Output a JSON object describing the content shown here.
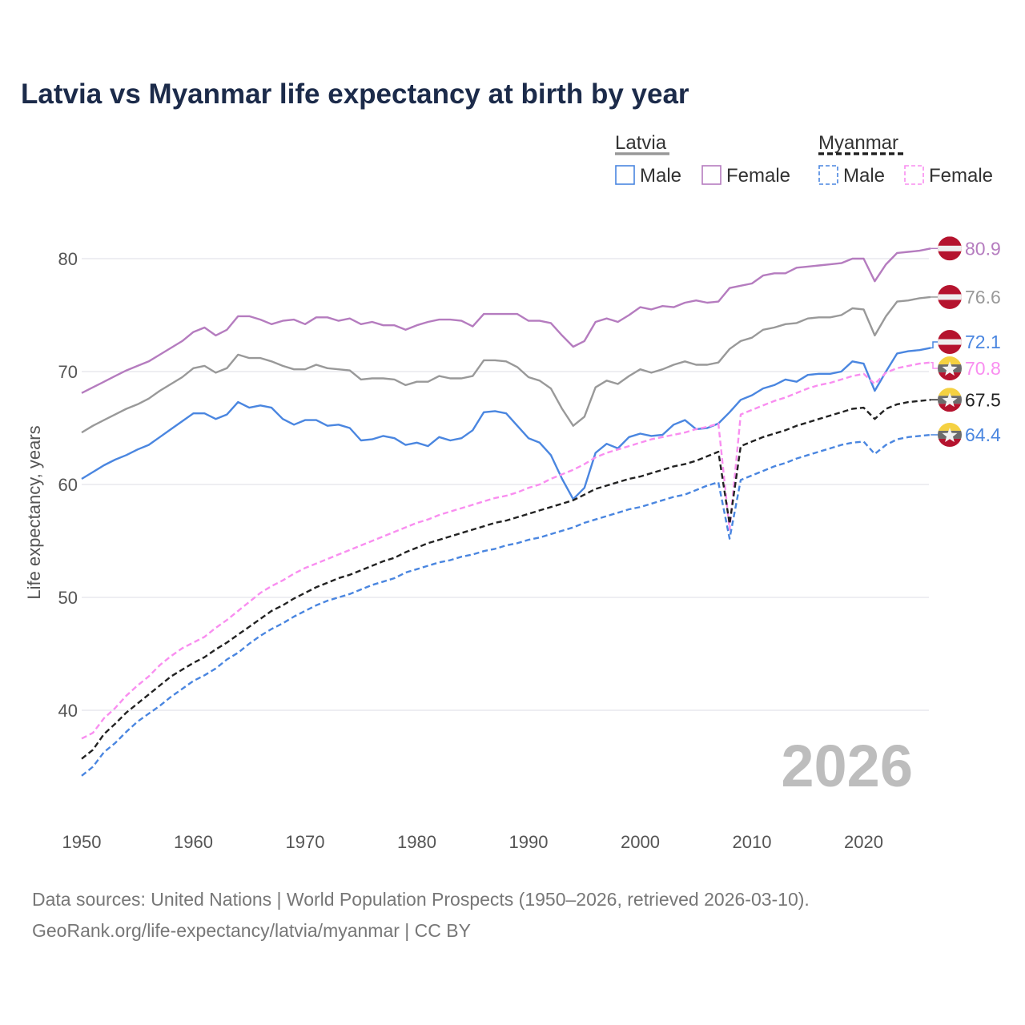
{
  "chart_data": {
    "type": "line",
    "title": "Latvia vs Myanmar life expectancy at birth by year",
    "xlabel": "",
    "ylabel": "Life expectancy, years",
    "xlim": [
      1950,
      2026
    ],
    "ylim": [
      32,
      83
    ],
    "x_ticks": [
      "1950",
      "1960",
      "1970",
      "1980",
      "1990",
      "2000",
      "2010",
      "2020"
    ],
    "y_ticks": [
      "40",
      "50",
      "60",
      "70",
      "80"
    ],
    "grid": true,
    "current_year_label": "2026",
    "legend": {
      "placement": "top-right",
      "groups": [
        {
          "name": "Latvia",
          "items": [
            "Male",
            "Female"
          ]
        },
        {
          "name": "Myanmar",
          "items": [
            "Male",
            "Female"
          ]
        }
      ]
    },
    "x": [
      1950,
      1951,
      1952,
      1953,
      1954,
      1955,
      1956,
      1957,
      1958,
      1959,
      1960,
      1961,
      1962,
      1963,
      1964,
      1965,
      1966,
      1967,
      1968,
      1969,
      1970,
      1971,
      1972,
      1973,
      1974,
      1975,
      1976,
      1977,
      1978,
      1979,
      1980,
      1981,
      1982,
      1983,
      1984,
      1985,
      1986,
      1987,
      1988,
      1989,
      1990,
      1991,
      1992,
      1993,
      1994,
      1995,
      1996,
      1997,
      1998,
      1999,
      2000,
      2001,
      2002,
      2003,
      2004,
      2005,
      2006,
      2007,
      2008,
      2009,
      2010,
      2011,
      2012,
      2013,
      2014,
      2015,
      2016,
      2017,
      2018,
      2019,
      2020,
      2021,
      2022,
      2023,
      2024,
      2025,
      2026
    ],
    "series": [
      {
        "name": "Latvia Female",
        "country": "Latvia",
        "sex": "Female",
        "color": "#b57cbf",
        "dashed": false,
        "flag": "latvia",
        "end_label": "80.9",
        "values": [
          68.1,
          68.6,
          69.1,
          69.6,
          70.1,
          70.5,
          70.9,
          71.5,
          72.1,
          72.7,
          73.5,
          73.9,
          73.2,
          73.7,
          74.9,
          74.9,
          74.6,
          74.2,
          74.5,
          74.6,
          74.2,
          74.8,
          74.8,
          74.5,
          74.7,
          74.2,
          74.4,
          74.1,
          74.1,
          73.7,
          74.1,
          74.4,
          74.6,
          74.6,
          74.5,
          74.0,
          75.1,
          75.1,
          75.1,
          75.1,
          74.5,
          74.5,
          74.3,
          73.2,
          72.2,
          72.7,
          74.4,
          74.7,
          74.4,
          75.0,
          75.7,
          75.5,
          75.8,
          75.7,
          76.1,
          76.3,
          76.1,
          76.2,
          77.4,
          77.6,
          77.8,
          78.5,
          78.7,
          78.7,
          79.2,
          79.3,
          79.4,
          79.5,
          79.6,
          80.0,
          80.0,
          78.0,
          79.5,
          80.5,
          80.6,
          80.7,
          80.9
        ]
      },
      {
        "name": "Latvia Total",
        "country": "Latvia",
        "sex": "Total",
        "color": "#999999",
        "dashed": false,
        "flag": "latvia",
        "end_label": "76.6",
        "values": [
          64.6,
          65.2,
          65.7,
          66.2,
          66.7,
          67.1,
          67.6,
          68.3,
          68.9,
          69.5,
          70.3,
          70.5,
          69.9,
          70.3,
          71.5,
          71.2,
          71.2,
          70.9,
          70.5,
          70.2,
          70.2,
          70.6,
          70.3,
          70.2,
          70.1,
          69.3,
          69.4,
          69.4,
          69.3,
          68.8,
          69.1,
          69.1,
          69.6,
          69.4,
          69.4,
          69.6,
          71.0,
          71.0,
          70.9,
          70.4,
          69.5,
          69.2,
          68.5,
          66.7,
          65.2,
          66.0,
          68.6,
          69.2,
          68.9,
          69.6,
          70.2,
          69.9,
          70.2,
          70.6,
          70.9,
          70.6,
          70.6,
          70.8,
          72.0,
          72.7,
          73.0,
          73.7,
          73.9,
          74.2,
          74.3,
          74.7,
          74.8,
          74.8,
          75.0,
          75.6,
          75.5,
          73.2,
          74.9,
          76.2,
          76.3,
          76.5,
          76.6
        ]
      },
      {
        "name": "Latvia Male",
        "country": "Latvia",
        "sex": "Male",
        "color": "#4a86e0",
        "dashed": false,
        "flag": "latvia",
        "end_label": "72.1",
        "values": [
          60.5,
          61.1,
          61.7,
          62.2,
          62.6,
          63.1,
          63.5,
          64.2,
          64.9,
          65.6,
          66.3,
          66.3,
          65.8,
          66.2,
          67.3,
          66.8,
          67.0,
          66.8,
          65.8,
          65.3,
          65.7,
          65.7,
          65.2,
          65.3,
          65.0,
          63.9,
          64.0,
          64.3,
          64.1,
          63.5,
          63.7,
          63.4,
          64.2,
          63.9,
          64.1,
          64.8,
          66.4,
          66.5,
          66.3,
          65.2,
          64.1,
          63.7,
          62.6,
          60.5,
          58.7,
          59.7,
          62.8,
          63.6,
          63.2,
          64.2,
          64.5,
          64.3,
          64.4,
          65.3,
          65.7,
          64.9,
          65.0,
          65.4,
          66.4,
          67.5,
          67.9,
          68.5,
          68.8,
          69.3,
          69.1,
          69.7,
          69.8,
          69.8,
          70.0,
          70.9,
          70.7,
          68.3,
          70.0,
          71.6,
          71.8,
          71.9,
          72.1
        ]
      },
      {
        "name": "Myanmar Female",
        "country": "Myanmar",
        "sex": "Female",
        "color": "#f98ef0",
        "dashed": true,
        "flag": "myanmar",
        "end_label": "70.8",
        "values": [
          37.5,
          38.0,
          39.3,
          40.2,
          41.3,
          42.2,
          43.0,
          44.0,
          44.8,
          45.5,
          46.0,
          46.5,
          47.3,
          48.0,
          48.8,
          49.6,
          50.4,
          51.0,
          51.5,
          52.1,
          52.6,
          53.0,
          53.4,
          53.8,
          54.2,
          54.6,
          55.0,
          55.4,
          55.8,
          56.2,
          56.6,
          56.9,
          57.3,
          57.6,
          57.9,
          58.2,
          58.5,
          58.8,
          59.0,
          59.3,
          59.7,
          60.0,
          60.5,
          60.9,
          61.3,
          61.8,
          62.4,
          62.8,
          63.1,
          63.4,
          63.7,
          64.0,
          64.2,
          64.4,
          64.6,
          64.9,
          65.1,
          65.4,
          56.0,
          66.2,
          66.6,
          67.0,
          67.4,
          67.7,
          68.1,
          68.5,
          68.8,
          69.0,
          69.3,
          69.6,
          69.8,
          68.9,
          69.9,
          70.3,
          70.5,
          70.7,
          70.8
        ]
      },
      {
        "name": "Myanmar Total",
        "country": "Myanmar",
        "sex": "Total",
        "color": "#222222",
        "dashed": true,
        "flag": "myanmar",
        "end_label": "67.5",
        "values": [
          35.7,
          36.5,
          37.9,
          38.8,
          39.8,
          40.6,
          41.4,
          42.2,
          43.0,
          43.6,
          44.2,
          44.7,
          45.4,
          46.0,
          46.7,
          47.4,
          48.1,
          48.8,
          49.3,
          49.9,
          50.4,
          50.9,
          51.3,
          51.7,
          52.0,
          52.4,
          52.8,
          53.2,
          53.5,
          54.0,
          54.4,
          54.8,
          55.1,
          55.4,
          55.7,
          56.0,
          56.3,
          56.6,
          56.8,
          57.1,
          57.4,
          57.7,
          58.0,
          58.3,
          58.6,
          59.1,
          59.6,
          59.9,
          60.2,
          60.5,
          60.7,
          61.0,
          61.3,
          61.6,
          61.8,
          62.1,
          62.5,
          62.9,
          56.5,
          63.4,
          63.8,
          64.2,
          64.5,
          64.8,
          65.2,
          65.5,
          65.8,
          66.1,
          66.4,
          66.7,
          66.8,
          65.8,
          66.7,
          67.1,
          67.3,
          67.4,
          67.5
        ]
      },
      {
        "name": "Myanmar Male",
        "country": "Myanmar",
        "sex": "Male",
        "color": "#4a86e0",
        "dashed": true,
        "flag": "myanmar",
        "end_label": "64.4",
        "values": [
          34.2,
          35.0,
          36.3,
          37.1,
          38.1,
          39.0,
          39.7,
          40.4,
          41.2,
          41.9,
          42.6,
          43.1,
          43.7,
          44.5,
          45.1,
          45.9,
          46.6,
          47.2,
          47.7,
          48.3,
          48.8,
          49.3,
          49.7,
          50.0,
          50.3,
          50.7,
          51.1,
          51.4,
          51.7,
          52.2,
          52.5,
          52.8,
          53.1,
          53.3,
          53.6,
          53.8,
          54.1,
          54.3,
          54.6,
          54.8,
          55.1,
          55.3,
          55.6,
          55.9,
          56.2,
          56.6,
          56.9,
          57.2,
          57.5,
          57.8,
          58.0,
          58.3,
          58.6,
          58.9,
          59.1,
          59.5,
          59.9,
          60.2,
          55.2,
          60.4,
          60.8,
          61.2,
          61.6,
          61.9,
          62.3,
          62.6,
          62.9,
          63.2,
          63.5,
          63.7,
          63.8,
          62.7,
          63.5,
          64.0,
          64.2,
          64.3,
          64.4
        ]
      }
    ]
  },
  "colors": {
    "title": "#1c2b4a",
    "latvia_red": "#b5132e",
    "myanmar_yellow": "#f5d142",
    "myanmar_mid": "#6c6c6c",
    "grid": "#e8e8ee"
  },
  "footer": {
    "line1": "Data sources: United Nations | World Population Prospects (1950–2026, retrieved 2026-03-10).",
    "line2": "GeoRank.org/life-expectancy/latvia/myanmar | CC BY"
  }
}
